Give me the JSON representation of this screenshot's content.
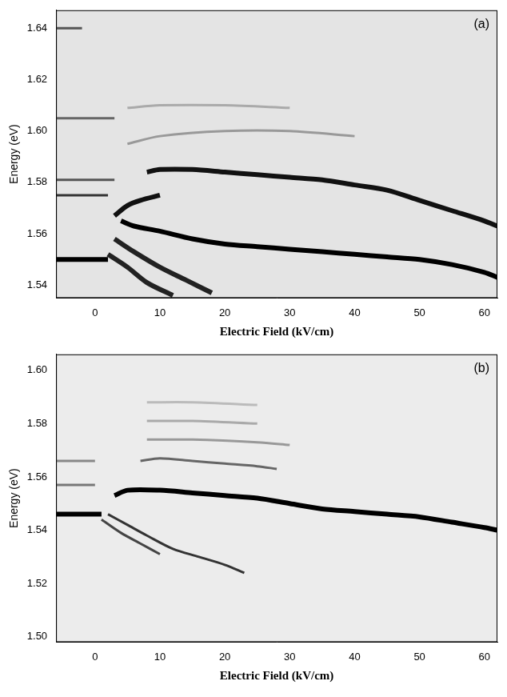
{
  "chart_data": [
    {
      "type": "line",
      "annotations": [
        "(a)"
      ],
      "xlabel": "Electric Field (kV/cm)",
      "ylabel": "Energy (eV)",
      "xlim": [
        -6,
        62
      ],
      "ylim": [
        1.535,
        1.647
      ],
      "xticks": [
        0,
        10,
        20,
        30,
        40,
        50,
        60
      ],
      "yticks": [
        1.54,
        1.56,
        1.58,
        {
          "value": 1.6,
          "label": "1.60"
        },
        1.62,
        1.64
      ],
      "grid": false,
      "series": [
        {
          "color": "#000000",
          "x": [
            -6,
            -3,
            0,
            2
          ],
          "values": [
            1.55,
            1.55,
            1.55,
            1.55
          ]
        },
        {
          "color": "#000000",
          "x": [
            4,
            6,
            10,
            15,
            20,
            25,
            30,
            35,
            40,
            45,
            50,
            55,
            60,
            62
          ],
          "values": [
            1.565,
            1.563,
            1.561,
            1.558,
            1.556,
            1.555,
            1.554,
            1.553,
            1.552,
            1.551,
            1.55,
            1.548,
            1.545,
            1.543
          ]
        },
        {
          "color": "#111111",
          "x": [
            8,
            10,
            15,
            20,
            25,
            30,
            35,
            40,
            45,
            50,
            55,
            60,
            62
          ],
          "values": [
            1.584,
            1.585,
            1.585,
            1.584,
            1.583,
            1.582,
            1.581,
            1.579,
            1.577,
            1.573,
            1.569,
            1.565,
            1.563
          ]
        },
        {
          "color": "#333333",
          "x": [
            -6,
            -3,
            0,
            2
          ],
          "values": [
            1.575,
            1.575,
            1.575,
            1.575
          ]
        },
        {
          "color": "#555555",
          "x": [
            -6,
            0,
            3
          ],
          "values": [
            1.581,
            1.581,
            1.581
          ]
        },
        {
          "color": "#666666",
          "x": [
            -6,
            0,
            3
          ],
          "values": [
            1.605,
            1.605,
            1.605
          ]
        },
        {
          "color": "#555555",
          "x": [
            -6,
            -2
          ],
          "values": [
            1.64,
            1.64
          ]
        },
        {
          "color": "#222222",
          "x": [
            3,
            6,
            10,
            14,
            18
          ],
          "values": [
            1.558,
            1.553,
            1.547,
            1.542,
            1.537
          ]
        },
        {
          "color": "#222222",
          "x": [
            2,
            5,
            8,
            12
          ],
          "values": [
            1.552,
            1.547,
            1.541,
            1.536
          ]
        },
        {
          "color": "#111111",
          "x": [
            3,
            5,
            7,
            10
          ],
          "values": [
            1.567,
            1.571,
            1.573,
            1.575
          ]
        },
        {
          "color": "#999999",
          "x": [
            5,
            10,
            20,
            30,
            40
          ],
          "values": [
            1.595,
            1.598,
            1.6,
            1.6,
            1.598
          ]
        },
        {
          "color": "#aaaaaa",
          "x": [
            5,
            10,
            20,
            30
          ],
          "values": [
            1.609,
            1.61,
            1.61,
            1.609
          ]
        }
      ]
    },
    {
      "type": "line",
      "annotations": [
        "(b)"
      ],
      "xlabel": "Electric Field (kV/cm)",
      "ylabel": "Energy (eV)",
      "xlim": [
        -6,
        62
      ],
      "ylim": [
        1.498,
        1.606
      ],
      "xticks": [
        0,
        10,
        20,
        30,
        40,
        50,
        60
      ],
      "yticks": [
        {
          "value": 1.5,
          "label": "1.50"
        },
        1.52,
        1.54,
        1.56,
        1.58,
        {
          "value": 1.6,
          "label": "1.60"
        }
      ],
      "grid": false,
      "series": [
        {
          "color": "#000000",
          "x": [
            -6,
            -3,
            0,
            1
          ],
          "values": [
            1.546,
            1.546,
            1.546,
            1.546
          ]
        },
        {
          "color": "#000000",
          "x": [
            3,
            5,
            10,
            15,
            20,
            25,
            30,
            35,
            40,
            45,
            50,
            55,
            60,
            62
          ],
          "values": [
            1.553,
            1.555,
            1.555,
            1.554,
            1.553,
            1.552,
            1.55,
            1.548,
            1.547,
            1.546,
            1.545,
            1.543,
            1.541,
            1.54
          ]
        },
        {
          "color": "#333333",
          "x": [
            2,
            5,
            8,
            12,
            16,
            20,
            23
          ],
          "values": [
            1.546,
            1.542,
            1.538,
            1.533,
            1.53,
            1.527,
            1.524
          ]
        },
        {
          "color": "#444444",
          "x": [
            1,
            4,
            7,
            10
          ],
          "values": [
            1.544,
            1.539,
            1.535,
            1.531
          ]
        },
        {
          "color": "#666666",
          "x": [
            7,
            10,
            15,
            20,
            25,
            28
          ],
          "values": [
            1.566,
            1.567,
            1.566,
            1.565,
            1.564,
            1.563
          ]
        },
        {
          "color": "#999999",
          "x": [
            8,
            15,
            25,
            30
          ],
          "values": [
            1.574,
            1.574,
            1.573,
            1.572
          ]
        },
        {
          "color": "#aaaaaa",
          "x": [
            8,
            15,
            25
          ],
          "values": [
            1.581,
            1.581,
            1.58
          ]
        },
        {
          "color": "#bbbbbb",
          "x": [
            8,
            15,
            25
          ],
          "values": [
            1.588,
            1.588,
            1.587
          ]
        },
        {
          "color": "#777777",
          "x": [
            -6,
            0
          ],
          "values": [
            1.557,
            1.557
          ]
        },
        {
          "color": "#888888",
          "x": [
            -6,
            0
          ],
          "values": [
            1.566,
            1.566
          ]
        }
      ]
    }
  ]
}
